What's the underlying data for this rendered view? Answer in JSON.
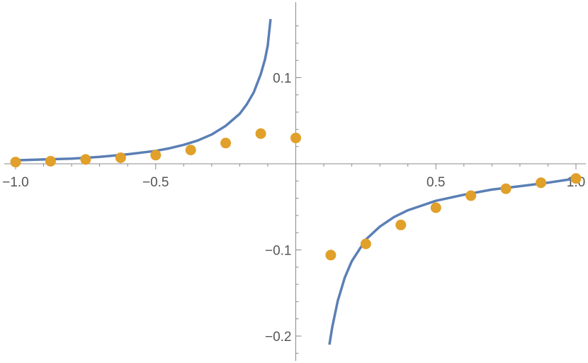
{
  "chart_data": {
    "type": "scatter",
    "title": "",
    "xlabel": "",
    "ylabel": "",
    "xlim": [
      -1.0,
      1.0
    ],
    "ylim": [
      -0.22,
      0.17
    ],
    "grid": false,
    "legend": "none",
    "x_ticks": [
      {
        "value": -1.0,
        "label": "−1.0"
      },
      {
        "value": -0.5,
        "label": "−0.5"
      },
      {
        "value": 0.5,
        "label": "0.5"
      },
      {
        "value": 1.0,
        "label": "1.0"
      }
    ],
    "y_ticks": [
      {
        "value": 0.1,
        "label": "0.1"
      },
      {
        "value": -0.1,
        "label": "−0.1"
      },
      {
        "value": -0.2,
        "label": "−0.2"
      }
    ],
    "series": [
      {
        "kind": "line",
        "color": "#5b7fb5",
        "segments": [
          {
            "x": [
              -1.0,
              -0.9,
              -0.8,
              -0.7,
              -0.6,
              -0.5,
              -0.45,
              -0.4,
              -0.35,
              -0.3,
              -0.25,
              -0.2,
              -0.175,
              -0.15,
              -0.125,
              -0.11,
              -0.1,
              -0.09
            ],
            "y": [
              0.004,
              0.005,
              0.006,
              0.008,
              0.011,
              0.015,
              0.018,
              0.022,
              0.027,
              0.034,
              0.044,
              0.058,
              0.069,
              0.083,
              0.104,
              0.121,
              0.137,
              0.168
            ]
          },
          {
            "x": [
              0.12,
              0.13,
              0.15,
              0.175,
              0.2,
              0.25,
              0.3,
              0.35,
              0.4,
              0.5,
              0.6,
              0.7,
              0.8,
              0.9,
              1.0
            ],
            "y": [
              -0.21,
              -0.19,
              -0.159,
              -0.132,
              -0.113,
              -0.088,
              -0.073,
              -0.062,
              -0.054,
              -0.043,
              -0.036,
              -0.03,
              -0.026,
              -0.022,
              -0.017
            ]
          }
        ]
      },
      {
        "kind": "points",
        "color": "#e0a02a",
        "x": [
          -1.0,
          -0.875,
          -0.75,
          -0.625,
          -0.5,
          -0.375,
          -0.25,
          -0.125,
          0.0,
          0.125,
          0.25,
          0.375,
          0.5,
          0.625,
          0.75,
          0.875,
          1.0
        ],
        "y": [
          0.002,
          0.003,
          0.005,
          0.007,
          0.01,
          0.016,
          0.024,
          0.035,
          0.03,
          -0.106,
          -0.093,
          -0.071,
          -0.051,
          -0.037,
          -0.029,
          -0.022,
          -0.017
        ]
      }
    ]
  }
}
